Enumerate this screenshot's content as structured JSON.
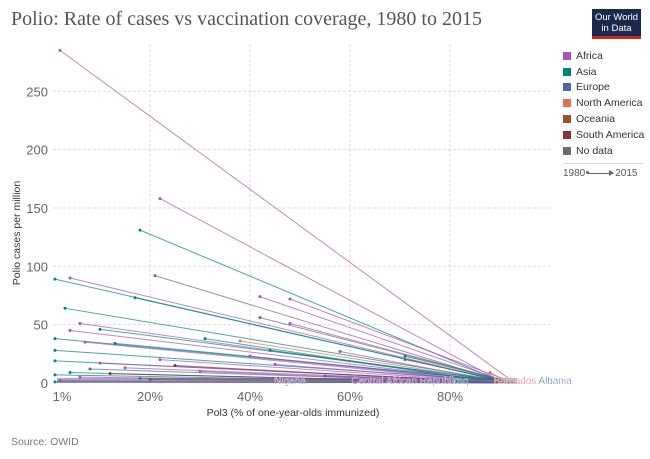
{
  "header": {
    "title": "Polio: Rate of cases vs vaccination coverage, 1980 to 2015",
    "logo_line1": "Our World",
    "logo_line2": "in Data"
  },
  "legend": {
    "items": [
      {
        "label": "Africa",
        "color": "#a652ba"
      },
      {
        "label": "Asia",
        "color": "#00847e"
      },
      {
        "label": "Europe",
        "color": "#4c6a9c"
      },
      {
        "label": "North America",
        "color": "#e56e5a"
      },
      {
        "label": "Oceania",
        "color": "#9a5129"
      },
      {
        "label": "South America",
        "color": "#883039"
      },
      {
        "label": "No data",
        "color": "#6d6d6d"
      }
    ],
    "timeline_start": "1980",
    "timeline_end": "2015"
  },
  "footer": {
    "source": "Source: OWID"
  },
  "chart_data": {
    "type": "scatter",
    "subtype": "connected-arrows",
    "title": "Polio: Rate of cases vs vaccination coverage, 1980 to 2015",
    "xlabel": "Pol3 (% of one-year-olds immunized)",
    "ylabel": "Polio cases per million",
    "xlim": [
      1,
      96
    ],
    "ylim": [
      0,
      290
    ],
    "x_ticks": [
      1,
      20,
      40,
      60,
      80
    ],
    "x_tick_labels": [
      "1%",
      "20%",
      "40%",
      "60%",
      "80%"
    ],
    "y_ticks": [
      0,
      50,
      100,
      150,
      200,
      250
    ],
    "y_tick_labels": [
      "0",
      "50",
      "100",
      "150",
      "200",
      "250"
    ],
    "grid": true,
    "legend_position": "right",
    "series": [
      {
        "continent": "Africa",
        "x": [
          2,
          92
        ],
        "y": [
          285,
          3
        ]
      },
      {
        "continent": "Africa",
        "x": [
          22,
          90
        ],
        "y": [
          158,
          2
        ]
      },
      {
        "continent": "Asia",
        "x": [
          18,
          90
        ],
        "y": [
          131,
          2
        ]
      },
      {
        "continent": "No data",
        "x": [
          21,
          90
        ],
        "y": [
          92,
          2
        ]
      },
      {
        "continent": "Africa",
        "x": [
          4,
          90
        ],
        "y": [
          90,
          2
        ]
      },
      {
        "continent": "Asia",
        "x": [
          1,
          91
        ],
        "y": [
          89,
          1
        ]
      },
      {
        "continent": "Asia",
        "x": [
          17,
          90
        ],
        "y": [
          73,
          2
        ]
      },
      {
        "continent": "Africa",
        "x": [
          42,
          90
        ],
        "y": [
          74,
          3
        ]
      },
      {
        "continent": "Africa",
        "x": [
          48,
          91
        ],
        "y": [
          72,
          3
        ]
      },
      {
        "continent": "Asia",
        "x": [
          3,
          90
        ],
        "y": [
          64,
          2
        ]
      },
      {
        "continent": "Africa",
        "x": [
          6,
          89
        ],
        "y": [
          51,
          1
        ]
      },
      {
        "continent": "Africa",
        "x": [
          48,
          90
        ],
        "y": [
          51,
          3
        ]
      },
      {
        "continent": "No data",
        "x": [
          42,
          91
        ],
        "y": [
          56,
          2
        ]
      },
      {
        "continent": "Africa",
        "x": [
          4,
          90
        ],
        "y": [
          45,
          1
        ]
      },
      {
        "continent": "Asia",
        "x": [
          10,
          90
        ],
        "y": [
          46,
          2
        ]
      },
      {
        "continent": "Asia",
        "x": [
          31,
          88
        ],
        "y": [
          38,
          1
        ]
      },
      {
        "continent": "Asia",
        "x": [
          1,
          90
        ],
        "y": [
          38,
          2
        ]
      },
      {
        "continent": "Africa",
        "x": [
          7,
          89
        ],
        "y": [
          35,
          1
        ]
      },
      {
        "continent": "Asia",
        "x": [
          13,
          90
        ],
        "y": [
          34,
          2
        ]
      },
      {
        "continent": "North America",
        "x": [
          38,
          89
        ],
        "y": [
          36,
          2
        ]
      },
      {
        "continent": "Asia",
        "x": [
          1,
          90
        ],
        "y": [
          28,
          2
        ]
      },
      {
        "continent": "Africa",
        "x": [
          58,
          90
        ],
        "y": [
          27,
          1
        ]
      },
      {
        "continent": "Asia",
        "x": [
          71,
          91
        ],
        "y": [
          23,
          2
        ]
      },
      {
        "continent": "No data",
        "x": [
          71,
          91
        ],
        "y": [
          20,
          2
        ]
      },
      {
        "continent": "Africa",
        "x": [
          40,
          89
        ],
        "y": [
          23,
          1
        ]
      },
      {
        "continent": "Asia",
        "x": [
          1,
          90
        ],
        "y": [
          19,
          1
        ]
      },
      {
        "continent": "Africa",
        "x": [
          10,
          90
        ],
        "y": [
          17,
          1
        ]
      },
      {
        "continent": "Africa",
        "x": [
          15,
          90
        ],
        "y": [
          13,
          1
        ]
      },
      {
        "continent": "Europe",
        "x": [
          8,
          92
        ],
        "y": [
          12,
          0
        ]
      },
      {
        "continent": "Asia",
        "x": [
          4,
          91
        ],
        "y": [
          9,
          0
        ]
      },
      {
        "continent": "Africa",
        "x": [
          30,
          89
        ],
        "y": [
          10,
          0
        ]
      },
      {
        "continent": "South America",
        "x": [
          12,
          90
        ],
        "y": [
          8,
          0
        ]
      },
      {
        "continent": "Asia",
        "x": [
          1,
          92
        ],
        "y": [
          7,
          0
        ]
      },
      {
        "continent": "Africa",
        "x": [
          6,
          88
        ],
        "y": [
          5,
          1
        ]
      },
      {
        "continent": "Europe",
        "x": [
          18,
          93
        ],
        "y": [
          4,
          0
        ]
      },
      {
        "continent": "Oceania",
        "x": [
          20,
          90
        ],
        "y": [
          3,
          0
        ]
      },
      {
        "continent": "Africa",
        "x": [
          2,
          91
        ],
        "y": [
          2,
          0
        ]
      },
      {
        "continent": "Asia",
        "x": [
          1,
          93
        ],
        "y": [
          1,
          0
        ]
      },
      {
        "continent": "North America",
        "x": [
          88,
          92
        ],
        "y": [
          9,
          0
        ]
      },
      {
        "continent": "Africa",
        "x": [
          45,
          90
        ],
        "y": [
          16,
          1
        ]
      },
      {
        "continent": "South America",
        "x": [
          25,
          91
        ],
        "y": [
          15,
          0
        ]
      },
      {
        "continent": "Europe",
        "x": [
          55,
          94
        ],
        "y": [
          6,
          0
        ]
      },
      {
        "continent": "Africa",
        "x": [
          22,
          89
        ],
        "y": [
          20,
          1
        ]
      },
      {
        "continent": "Asia",
        "x": [
          44,
          90
        ],
        "y": [
          28,
          2
        ]
      }
    ],
    "annotations": [
      {
        "label": "Nigeria",
        "continent": "Africa",
        "x": 48
      },
      {
        "label": "Central African Republic",
        "continent": "Africa",
        "x": 71
      },
      {
        "label": "Iraq",
        "continent": "Asia",
        "x": 82
      },
      {
        "label": "Barbados",
        "continent": "North America",
        "x": 93
      },
      {
        "label": "Albania",
        "continent": "Europe",
        "x": 101
      }
    ]
  }
}
